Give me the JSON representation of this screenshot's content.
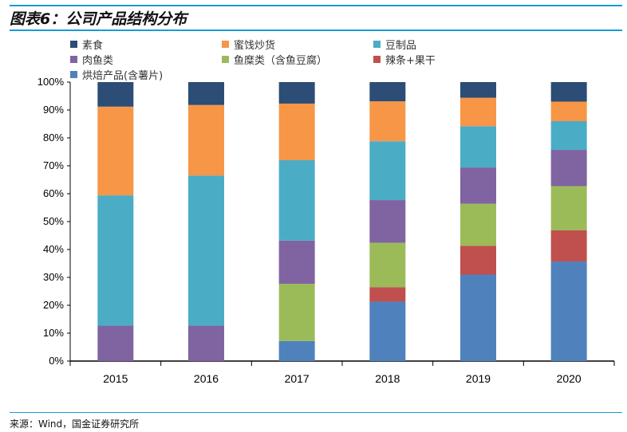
{
  "title": "图表6：公司产品结构分布",
  "source": "来源：Wind，国金证券研究所",
  "chart_data": {
    "type": "bar",
    "stacked": true,
    "categories": [
      "2015",
      "2016",
      "2017",
      "2018",
      "2019",
      "2020"
    ],
    "ylim": [
      0,
      100
    ],
    "yticks": [
      "0%",
      "10%",
      "20%",
      "30%",
      "40%",
      "50%",
      "60%",
      "70%",
      "80%",
      "90%",
      "100%"
    ],
    "legend_position": "top",
    "grid": false,
    "series": [
      {
        "name": "烘焙产品(含薯片)",
        "color": "#4f81bd",
        "values": [
          0,
          0,
          7.2,
          21.3,
          31.0,
          35.7
        ]
      },
      {
        "name": "辣条+果干",
        "color": "#c0504d",
        "values": [
          0,
          0,
          0,
          5.2,
          10.3,
          11.2
        ]
      },
      {
        "name": "鱼糜类（含鱼豆腐）",
        "color": "#9bbb59",
        "values": [
          0,
          0,
          20.5,
          15.9,
          15.1,
          15.8
        ]
      },
      {
        "name": "肉鱼类",
        "color": "#8064a2",
        "values": [
          12.7,
          12.7,
          15.5,
          15.3,
          13.0,
          13.0
        ]
      },
      {
        "name": "豆制品",
        "color": "#4bacc6",
        "values": [
          46.7,
          53.8,
          28.8,
          21.1,
          14.8,
          10.3
        ]
      },
      {
        "name": "蜜饯炒货",
        "color": "#f79646",
        "values": [
          31.8,
          25.3,
          20.3,
          14.3,
          10.2,
          7.0
        ]
      },
      {
        "name": "素食",
        "color": "#2c4d75",
        "values": [
          8.8,
          8.2,
          7.7,
          6.9,
          5.6,
          7.0
        ]
      }
    ],
    "legend_order": [
      "素食",
      "蜜饯炒货",
      "豆制品",
      "肉鱼类",
      "鱼糜类（含鱼豆腐）",
      "辣条+果干",
      "烘焙产品(含薯片)"
    ]
  }
}
